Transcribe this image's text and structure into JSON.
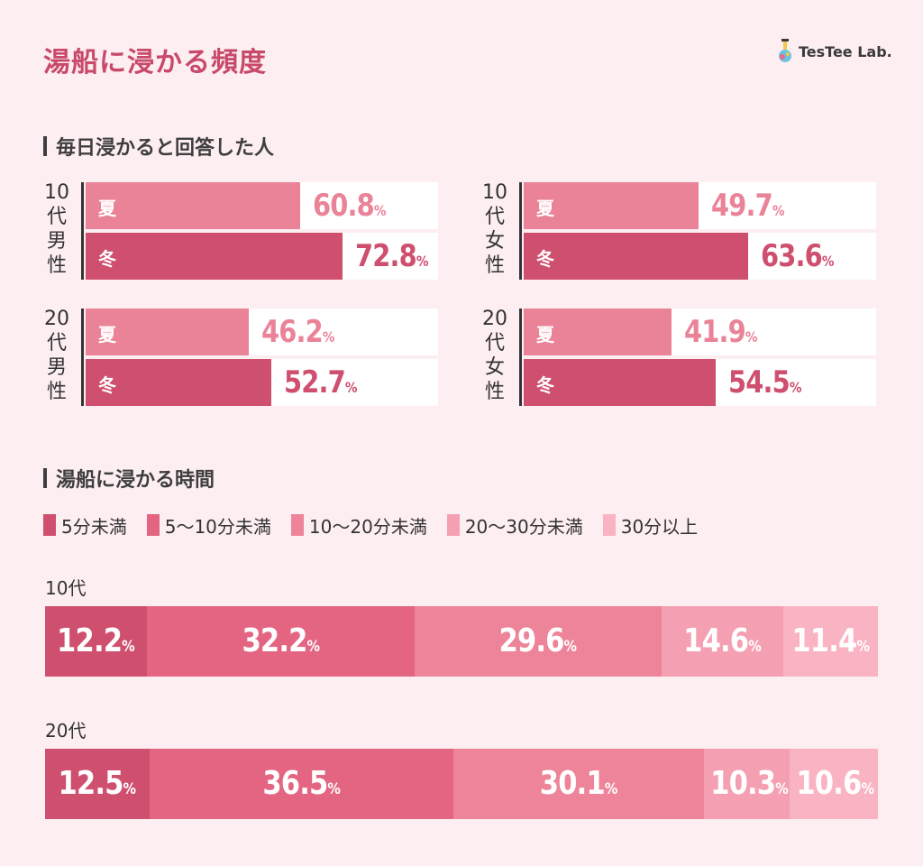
{
  "title": "湯船に浸かる頻度",
  "brand": {
    "name": "TesTee Lab."
  },
  "colors": {
    "summer": "#ea8398",
    "winter": "#cf4f6f",
    "title": "#c8496a",
    "legend": [
      "#cf4f6f",
      "#e36582",
      "#ee8499",
      "#f49fb2",
      "#f9b3c2"
    ]
  },
  "section1": {
    "title": "毎日浸かると回答した人"
  },
  "section2": {
    "title": "湯船に浸かる時間"
  },
  "chart_data": [
    {
      "type": "bar",
      "title": "毎日浸かると回答した人",
      "unit": "%",
      "xlim": [
        0,
        100
      ],
      "groups": [
        {
          "label": "10代男性",
          "label_chars": [
            "10",
            "代",
            "男",
            "性"
          ],
          "rows": [
            {
              "season": "夏",
              "value": 60.8,
              "value_text": "60.8"
            },
            {
              "season": "冬",
              "value": 72.8,
              "value_text": "72.8"
            }
          ]
        },
        {
          "label": "10代女性",
          "label_chars": [
            "10",
            "代",
            "女",
            "性"
          ],
          "rows": [
            {
              "season": "夏",
              "value": 49.7,
              "value_text": "49.7"
            },
            {
              "season": "冬",
              "value": 63.6,
              "value_text": "63.6"
            }
          ]
        },
        {
          "label": "20代男性",
          "label_chars": [
            "20",
            "代",
            "男",
            "性"
          ],
          "rows": [
            {
              "season": "夏",
              "value": 46.2,
              "value_text": "46.2"
            },
            {
              "season": "冬",
              "value": 52.7,
              "value_text": "52.7"
            }
          ]
        },
        {
          "label": "20代女性",
          "label_chars": [
            "20",
            "代",
            "女",
            "性"
          ],
          "rows": [
            {
              "season": "夏",
              "value": 41.9,
              "value_text": "41.9"
            },
            {
              "season": "冬",
              "value": 54.5,
              "value_text": "54.5"
            }
          ]
        }
      ]
    },
    {
      "type": "bar",
      "stacked": true,
      "orientation": "horizontal",
      "title": "湯船に浸かる時間",
      "unit": "%",
      "series": [
        "5分未満",
        "5〜10分未満",
        "10〜20分未満",
        "20〜30分未満",
        "30分以上"
      ],
      "categories": [
        "10代",
        "20代"
      ],
      "values": [
        [
          12.2,
          32.2,
          29.6,
          14.6,
          11.4
        ],
        [
          12.5,
          36.5,
          30.1,
          10.3,
          10.6
        ]
      ],
      "value_texts": [
        [
          "12.2",
          "32.2",
          "29.6",
          "14.6",
          "11.4"
        ],
        [
          "12.5",
          "36.5",
          "30.1",
          "10.3",
          "10.6"
        ]
      ]
    }
  ]
}
